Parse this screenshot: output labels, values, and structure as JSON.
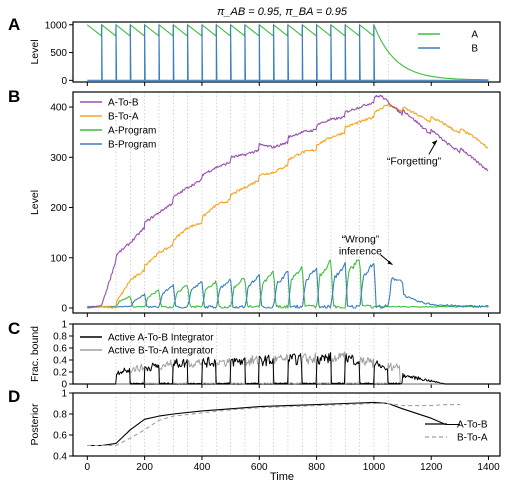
{
  "figure_title": "π_AB = 0.95, π_BA = 0.95",
  "x_axis": {
    "label": "Time",
    "range": [
      -50,
      1440
    ],
    "ticks": [
      0,
      200,
      400,
      600,
      800,
      1000,
      1200,
      1400
    ],
    "dotted_gridlines_every": 50
  },
  "colors": {
    "A": "#3fbf3f",
    "B": "#3a7fbf",
    "A_to_B": "#9b4fb0",
    "B_to_A": "#f5a623",
    "A_program": "#3fbf3f",
    "B_program": "#3a7fbf",
    "active_A_to_B": "#000000",
    "active_B_to_A": "#a0a0a0"
  },
  "chart_data": [
    {
      "panel": "A",
      "type": "line",
      "ylabel": "Level",
      "ylim": [
        -30,
        1050
      ],
      "yticks": [
        0,
        500,
        1000
      ],
      "legend_placement": "right",
      "series": [
        {
          "name": "A",
          "color_key": "A",
          "description_points": {
            "alternating_sawtooth": {
              "period": 50,
              "count": 20,
              "start": 0,
              "end": 1000,
              "high": 1000,
              "low": 800
            },
            "decay_after": 1000,
            "decay_to_at_1400": 5
          }
        },
        {
          "name": "B",
          "color_key": "B",
          "description_points": {
            "spikes_at_every": 50,
            "spike_start": 50,
            "spike_end": 1000,
            "high": 1000,
            "baseline": 0
          }
        }
      ]
    },
    {
      "panel": "B",
      "type": "line",
      "ylabel": "Level",
      "ylim": [
        -10,
        430
      ],
      "yticks": [
        0,
        100,
        200,
        300,
        400
      ],
      "legend_placement": "top-left",
      "annotations": [
        {
          "text": "“Forgetting”",
          "x": 1150,
          "y": 290
        },
        {
          "text_lines": [
            "“Wrong”",
            "inference"
          ],
          "x": 960,
          "y": 130
        }
      ],
      "series": [
        {
          "name": "A-To-B",
          "color_key": "A_to_B",
          "x": [
            0,
            50,
            100,
            150,
            200,
            250,
            300,
            350,
            400,
            450,
            500,
            550,
            600,
            650,
            700,
            750,
            800,
            850,
            900,
            950,
            1000,
            1025,
            1050,
            1100,
            1150,
            1200,
            1250,
            1300,
            1350,
            1400
          ],
          "y": [
            0,
            5,
            100,
            130,
            165,
            190,
            215,
            240,
            260,
            280,
            295,
            305,
            320,
            320,
            335,
            350,
            360,
            375,
            385,
            400,
            415,
            420,
            410,
            390,
            370,
            350,
            330,
            315,
            295,
            278
          ]
        },
        {
          "name": "B-To-A",
          "color_key": "B_to_A",
          "x": [
            0,
            50,
            100,
            150,
            200,
            250,
            300,
            350,
            400,
            450,
            500,
            550,
            600,
            650,
            700,
            750,
            800,
            850,
            900,
            950,
            1000,
            1050,
            1100,
            1150,
            1200,
            1250,
            1300,
            1350,
            1400
          ],
          "y": [
            0,
            2,
            5,
            55,
            80,
            110,
            130,
            160,
            175,
            205,
            220,
            240,
            260,
            270,
            290,
            310,
            320,
            340,
            355,
            370,
            385,
            405,
            395,
            385,
            375,
            365,
            352,
            340,
            322
          ]
        },
        {
          "name": "A-Program",
          "color_key": "A_program",
          "description_points": {
            "oscillation_period": 100,
            "start": 100,
            "end": 1000,
            "peak_envelope": {
              "x": [
                100,
                300,
                500,
                700,
                900,
                1000
              ],
              "y": [
                15,
                40,
                55,
                75,
                100,
                95
              ]
            },
            "baseline_after": 2
          }
        },
        {
          "name": "B-Program",
          "color_key": "B_program",
          "description_points": {
            "oscillation_period": 100,
            "phase_offset": 50,
            "start": 150,
            "end": 1100,
            "peak_envelope": {
              "x": [
                150,
                300,
                500,
                700,
                900,
                1050,
                1100
              ],
              "y": [
                15,
                45,
                55,
                70,
                85,
                90,
                50
              ]
            },
            "decay_after": 1100,
            "value_at_1400": 3
          }
        }
      ]
    },
    {
      "panel": "C",
      "type": "line",
      "ylabel": "Frac. bound",
      "ylim": [
        0,
        1.0
      ],
      "yticks": [
        0,
        0.2,
        0.4,
        0.6,
        0.8,
        1.0
      ],
      "legend_placement": "top-left",
      "series": [
        {
          "name": "Active A-To-B Integrator",
          "color_key": "active_A_to_B",
          "description_points": {
            "active_windows_start": 100,
            "active_windows_end": 1100,
            "window": 50,
            "level_envelope": {
              "x": [
                100,
                300,
                600,
                900,
                1000,
                1100,
                1250
              ],
              "y": [
                0.2,
                0.35,
                0.4,
                0.45,
                0.35,
                0.15,
                0.0
              ]
            }
          }
        },
        {
          "name": "Active B-To-A Integrator",
          "color_key": "active_B_to_A",
          "description_points": {
            "active_windows_start": 150,
            "active_windows_end": 1050,
            "window": 50,
            "level_envelope": {
              "x": [
                150,
                300,
                600,
                900,
                1050
              ],
              "y": [
                0.25,
                0.35,
                0.4,
                0.45,
                0.3
              ]
            }
          }
        }
      ]
    },
    {
      "panel": "D",
      "type": "line",
      "ylabel": "Posterior",
      "ylim": [
        0.4,
        1.0
      ],
      "yticks": [
        0.4,
        0.6,
        0.8,
        1.0
      ],
      "legend_placement": "bottom-right",
      "series": [
        {
          "name": "A-To-B",
          "color_key": "active_A_to_B",
          "style": "solid",
          "x": [
            0,
            50,
            100,
            150,
            200,
            250,
            300,
            400,
            500,
            600,
            700,
            800,
            900,
            1000,
            1050,
            1100,
            1200,
            1250,
            1300
          ],
          "y": [
            0.5,
            0.5,
            0.52,
            0.65,
            0.75,
            0.78,
            0.8,
            0.83,
            0.85,
            0.87,
            0.88,
            0.89,
            0.9,
            0.91,
            0.9,
            0.85,
            0.76,
            0.7,
            0.7
          ]
        },
        {
          "name": "B-To-A",
          "color_key": "active_B_to_A",
          "style": "dashed",
          "x": [
            0,
            50,
            100,
            150,
            200,
            250,
            300,
            400,
            500,
            600,
            700,
            800,
            900,
            1000,
            1050,
            1100,
            1200,
            1250,
            1300
          ],
          "y": [
            0.5,
            0.5,
            0.5,
            0.57,
            0.65,
            0.74,
            0.78,
            0.81,
            0.84,
            0.86,
            0.87,
            0.88,
            0.89,
            0.9,
            0.9,
            0.88,
            0.88,
            0.89,
            0.89
          ]
        }
      ]
    }
  ]
}
